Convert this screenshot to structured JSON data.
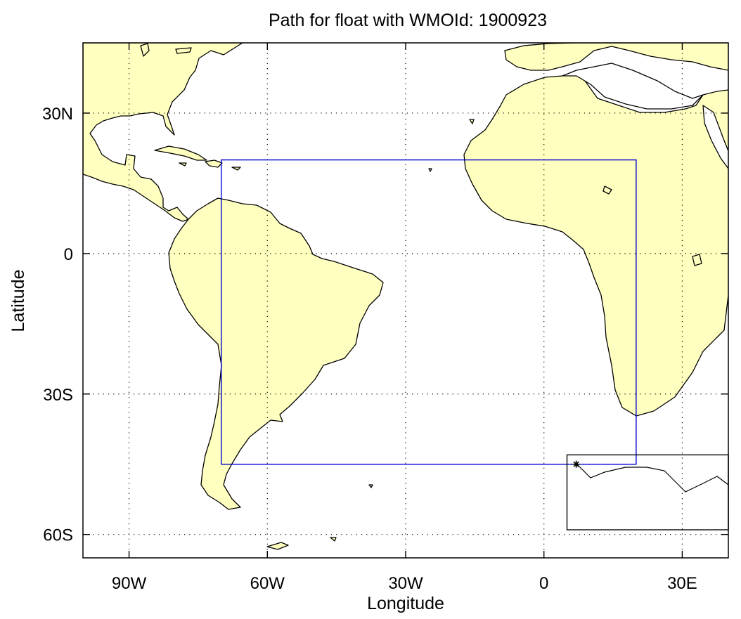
{
  "chart_data": {
    "type": "map",
    "title": "Path for float with WMOId: 1900923",
    "xlabel": "Longitude",
    "ylabel": "Latitude",
    "xlim": [
      -100,
      40
    ],
    "ylim": [
      -65,
      45
    ],
    "x_ticks": [
      {
        "value": -90,
        "label": "90W"
      },
      {
        "value": -60,
        "label": "60W"
      },
      {
        "value": -30,
        "label": "30W"
      },
      {
        "value": 0,
        "label": "0"
      },
      {
        "value": 30,
        "label": "30E"
      }
    ],
    "y_ticks": [
      {
        "value": 30,
        "label": "30N"
      },
      {
        "value": 0,
        "label": "0"
      },
      {
        "value": -30,
        "label": "30S"
      },
      {
        "value": -60,
        "label": "60S"
      }
    ],
    "grid": true,
    "land_color": "#ffffc0",
    "region_box": {
      "lon": [
        -70,
        20
      ],
      "lat": [
        -45,
        20
      ],
      "color": "#0000cc"
    },
    "inset_box": {
      "lon": [
        5,
        40
      ],
      "lat": [
        -59,
        -43
      ],
      "color": "#000000"
    },
    "float_position": {
      "lon": 7,
      "lat": -45,
      "marker": "asterisk"
    }
  }
}
